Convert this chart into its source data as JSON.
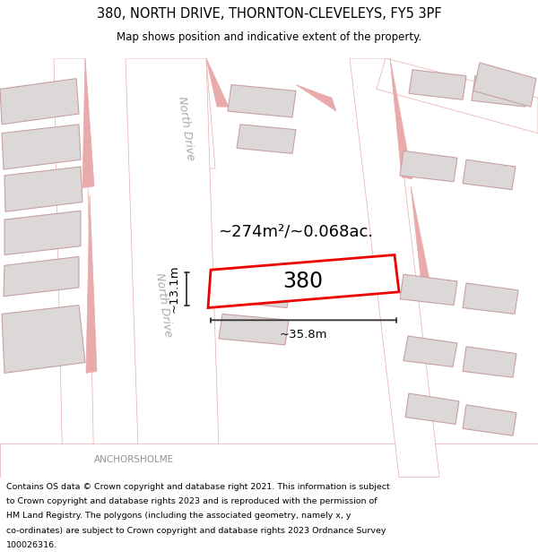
{
  "title_line1": "380, NORTH DRIVE, THORNTON-CLEVELEYS, FY5 3PF",
  "title_line2": "Map shows position and indicative extent of the property.",
  "map_bg": "#f2eeee",
  "road_color": "#ffffff",
  "road_edge_color": "#e8aaaa",
  "building_fill": "#ddd8d8",
  "building_edge": "#c8a0a0",
  "highlight_fill": "#ffffff",
  "highlight_edge": "#ee0000",
  "highlight_lw": 2.0,
  "dim_color": "#333333",
  "area_text": "~274m²/~0.068ac.",
  "label_text": "380",
  "dim_width": "~35.8m",
  "dim_height": "~13.1m",
  "road_label_upper": "North Drive",
  "road_label_lower": "North Drive",
  "street_label": "ANCHORSHOLME",
  "footer_lines": [
    "Contains OS data © Crown copyright and database right 2021. This information is subject",
    "to Crown copyright and database rights 2023 and is reproduced with the permission of",
    "HM Land Registry. The polygons (including the associated geometry, namely x, y",
    "co-ordinates) are subject to Crown copyright and database rights 2023 Ordnance Survey",
    "100026316."
  ]
}
